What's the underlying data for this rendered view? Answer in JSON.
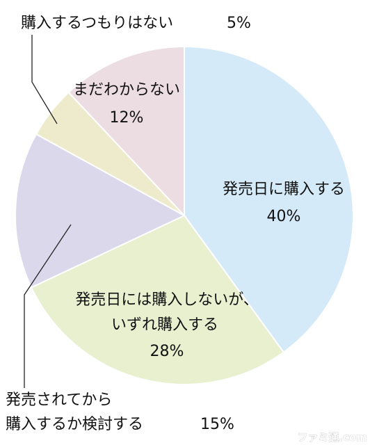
{
  "chart_data": {
    "type": "pie",
    "start": "12 o'clock",
    "direction": "clockwise",
    "slices": [
      {
        "label_lines": [
          "発売日に購入する"
        ],
        "pct_text": "40%",
        "value": 40,
        "color": "#d5eaf8"
      },
      {
        "label_lines": [
          "発売日には購入しないが、",
          "いずれ購入する"
        ],
        "pct_text": "28%",
        "value": 28,
        "color": "#e8f0d0"
      },
      {
        "label_lines": [
          "発売されてから",
          "購入するか検討する"
        ],
        "pct_text": "15%",
        "value": 15,
        "color": "#dcd8ec"
      },
      {
        "label_lines": [
          "購入するつもりはない"
        ],
        "pct_text": "5%",
        "value": 5,
        "color": "#eeebcd"
      },
      {
        "label_lines": [
          "まだわからない"
        ],
        "pct_text": "12%",
        "value": 12,
        "color": "#ecdde2"
      }
    ]
  },
  "watermark": "ファミ通.com"
}
